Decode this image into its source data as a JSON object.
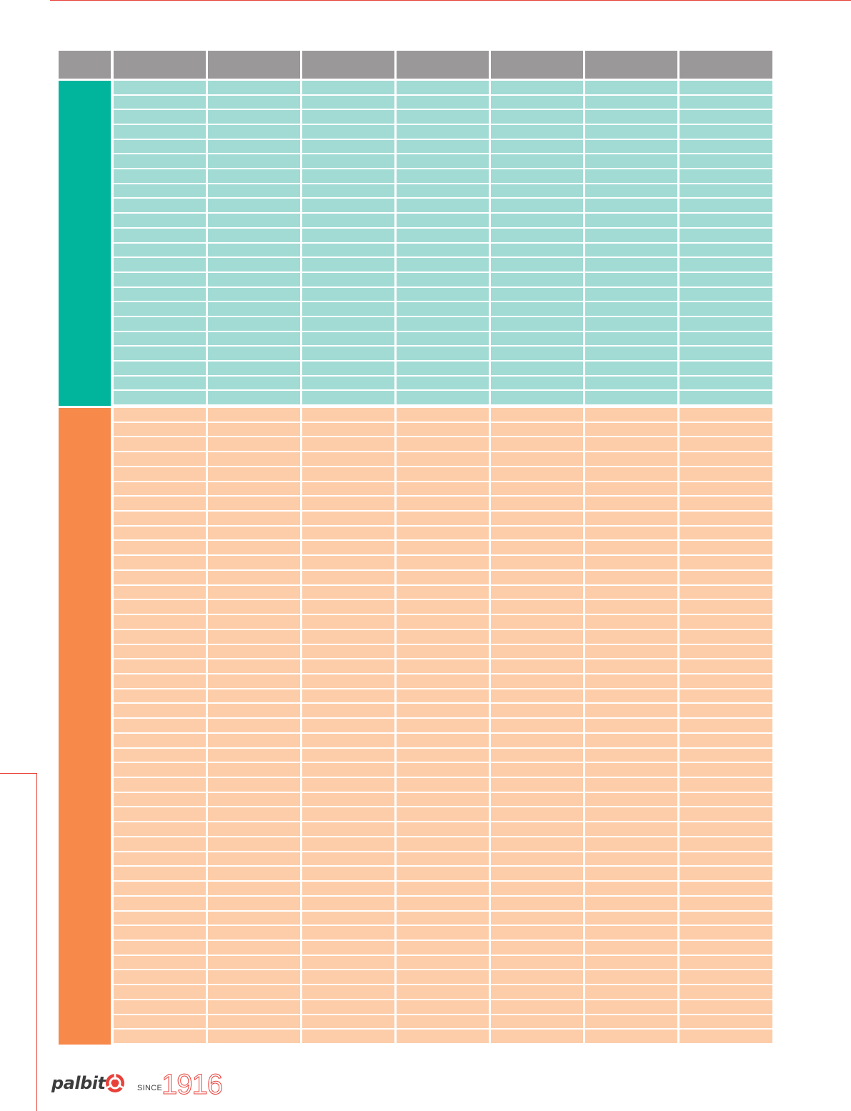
{
  "colors": {
    "accent_rule": "#e8413a",
    "header": "#9a9899",
    "teal_side": "#00b59c",
    "teal_cell": "#a1dbd4",
    "orange_side": "#f7894b",
    "orange_cell": "#fdcda9"
  },
  "table": {
    "columns": 8,
    "header_labels": [
      "",
      "",
      "",
      "",
      "",
      "",
      "",
      ""
    ],
    "groups": [
      {
        "name": "",
        "color": "teal",
        "rows": 22
      },
      {
        "name": "",
        "color": "orange",
        "rows": 43
      }
    ]
  },
  "footer": {
    "brand": "palbit",
    "since_label": "SINCE",
    "year": "1916",
    "logo_icon": "palbit-logo-icon"
  }
}
